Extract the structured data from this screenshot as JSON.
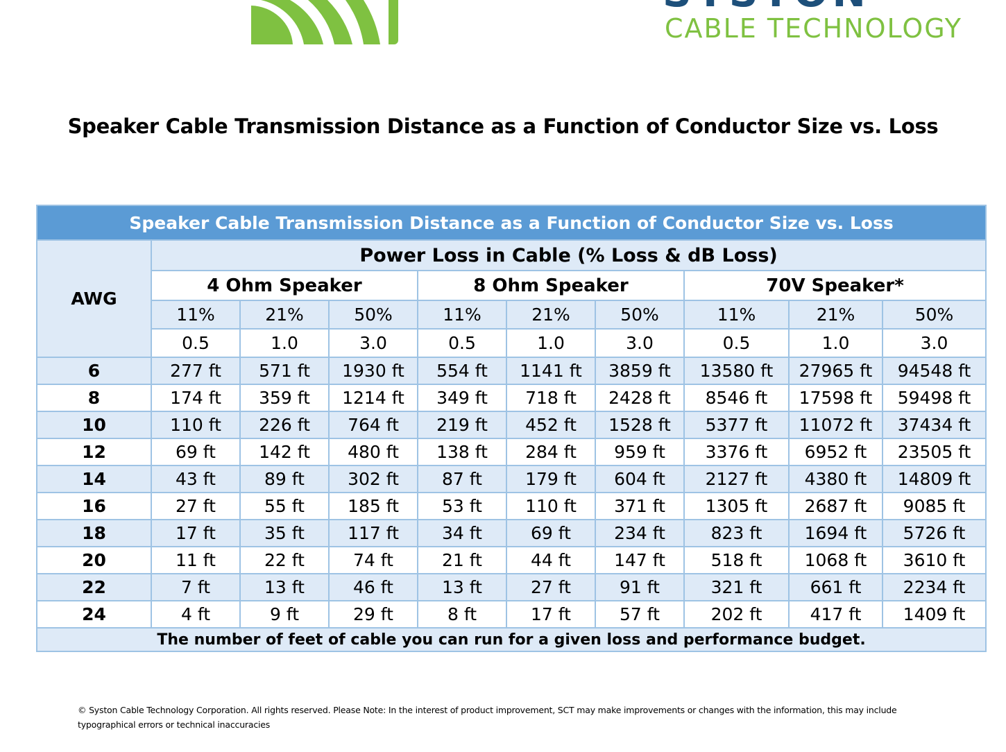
{
  "logo": {
    "brand": "SYSTON",
    "subtitle": "CABLE TECHNOLOGY",
    "colors": {
      "brand": "#1d4f7a",
      "accent": "#7fc141"
    }
  },
  "title": "Speaker Cable Transmission Distance as a Function of Conductor Size vs. Loss",
  "table": {
    "banner": "Speaker Cable Transmission Distance as a Function of Conductor Size vs. Loss",
    "awg_label": "AWG",
    "power_loss_label": "Power Loss in Cable (% Loss & dB Loss)",
    "speakers": [
      "4 Ohm Speaker",
      "8 Ohm Speaker",
      "70V Speaker*"
    ],
    "percent_losses": [
      "11%",
      "21%",
      "50%",
      "11%",
      "21%",
      "50%",
      "11%",
      "21%",
      "50%"
    ],
    "db_losses": [
      "0.5",
      "1.0",
      "3.0",
      "0.5",
      "1.0",
      "3.0",
      "0.5",
      "1.0",
      "3.0"
    ],
    "rows": [
      {
        "awg": "6",
        "values": [
          "277 ft",
          "571 ft",
          "1930 ft",
          "554 ft",
          "1141 ft",
          "3859 ft",
          "13580 ft",
          "27965 ft",
          "94548 ft"
        ]
      },
      {
        "awg": "8",
        "values": [
          "174 ft",
          "359 ft",
          "1214 ft",
          "349 ft",
          "718 ft",
          "2428 ft",
          "8546 ft",
          "17598 ft",
          "59498 ft"
        ]
      },
      {
        "awg": "10",
        "values": [
          "110 ft",
          "226 ft",
          "764 ft",
          "219 ft",
          "452 ft",
          "1528 ft",
          "5377 ft",
          "11072 ft",
          "37434 ft"
        ]
      },
      {
        "awg": "12",
        "values": [
          "69 ft",
          "142 ft",
          "480 ft",
          "138 ft",
          "284 ft",
          "959 ft",
          "3376 ft",
          "6952 ft",
          "23505 ft"
        ]
      },
      {
        "awg": "14",
        "values": [
          "43 ft",
          "89 ft",
          "302 ft",
          "87 ft",
          "179 ft",
          "604 ft",
          "2127 ft",
          "4380 ft",
          "14809 ft"
        ]
      },
      {
        "awg": "16",
        "values": [
          "27 ft",
          "55 ft",
          "185 ft",
          "53 ft",
          "110 ft",
          "371 ft",
          "1305 ft",
          "2687 ft",
          "9085 ft"
        ]
      },
      {
        "awg": "18",
        "values": [
          "17 ft",
          "35 ft",
          "117 ft",
          "34 ft",
          "69 ft",
          "234 ft",
          "823 ft",
          "1694 ft",
          "5726 ft"
        ]
      },
      {
        "awg": "20",
        "values": [
          "11 ft",
          "22 ft",
          "74 ft",
          "21 ft",
          "44 ft",
          "147 ft",
          "518 ft",
          "1068 ft",
          "3610 ft"
        ]
      },
      {
        "awg": "22",
        "values": [
          "7 ft",
          "13 ft",
          "46 ft",
          "13 ft",
          "27 ft",
          "91 ft",
          "321 ft",
          "661 ft",
          "2234 ft"
        ]
      },
      {
        "awg": "24",
        "values": [
          "4 ft",
          "9 ft",
          "29 ft",
          "8 ft",
          "17 ft",
          "57 ft",
          "202 ft",
          "417 ft",
          "1409 ft"
        ]
      }
    ],
    "footer_note": "The number of feet of cable you can run for a given loss and performance budget.",
    "colors": {
      "header_blue": "#5b9bd5",
      "light_blue": "#deeaf7",
      "border": "#9ec3e4"
    }
  },
  "copyright": "© Syston Cable Technology Corporation. All rights reserved. Please Note: In the interest of product improvement, SCT may make improvements or changes with the information, this may include typographical errors or technical inaccuracies"
}
